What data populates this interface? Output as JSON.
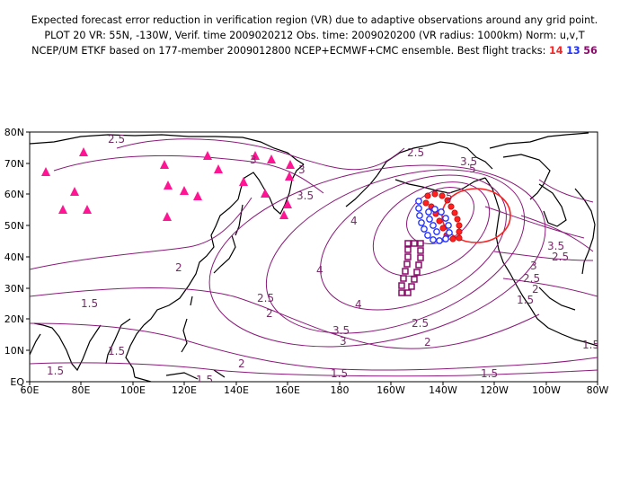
{
  "header": {
    "line1": "Expected forecast error reduction in verification region (VR) due to adaptive observations around any grid point.",
    "line2": "PLOT 20 VR: 55N, -130W, Verif. time 2009020212 Obs. time: 2009020200 (VR radius: 1000km) Norm: u,v,T",
    "line3_prefix": "NCEP/UM ETKF based on 177-member 2009012800 NCEP+ECMWF+CMC ensemble. Best flight tracks:",
    "track_14": "14",
    "track_13": "13",
    "track_56": "56"
  },
  "colors": {
    "contour": "#8a1a7a",
    "track_14": "#ff2020",
    "track_13": "#2030ff",
    "track_56": "#8a0a6a",
    "vr_circle": "#ff2020",
    "triangle": "#ff1493"
  },
  "axes": {
    "x_ticks": [
      "60E",
      "80E",
      "100E",
      "120E",
      "140E",
      "160E",
      "180",
      "160W",
      "140W",
      "120W",
      "100W",
      "80W"
    ],
    "y_ticks": [
      "EQ",
      "10N",
      "20N",
      "30N",
      "40N",
      "50N",
      "60N",
      "70N",
      "80N"
    ]
  },
  "contour_labels": [
    "2.5",
    "3",
    "3.5",
    "5",
    "2.5",
    "4",
    "3.5",
    "4",
    "3",
    "2",
    "2.5",
    "4",
    "3.5",
    "2.5",
    "3",
    "2",
    "1.5",
    "1.5",
    "2",
    "1.5",
    "2",
    "3.5",
    "3",
    "2.5",
    "2",
    "1.5",
    "1.5",
    "1.5",
    "1.5",
    "1.5",
    "2.5",
    "5"
  ],
  "legend_icons": [
    "triangle-marker-icon",
    "circle-marker-icon",
    "square-marker-icon"
  ]
}
